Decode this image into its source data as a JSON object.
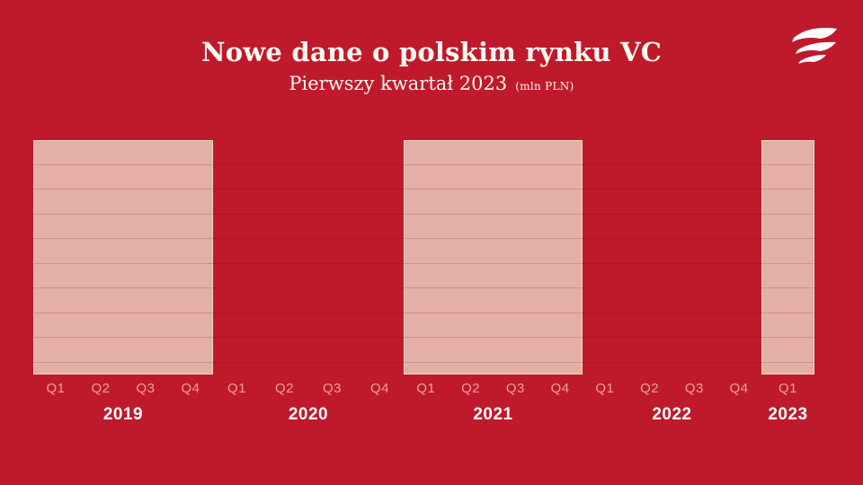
{
  "header": {
    "title": "Nowe dane o polskim rynku VC",
    "subtitle": "Pierwszy kwartał 2023",
    "unit_note": "(mln PLN)"
  },
  "logo": {
    "icon": "flag-stripes-logo"
  },
  "chart_data": {
    "type": "bar",
    "title": "Nowe dane o polskim rynku VC",
    "subtitle": "Pierwszy kwartał 2023",
    "unit": "mln PLN",
    "x_groups": [
      {
        "year": "2019",
        "quarters": [
          "Q1",
          "Q2",
          "Q3",
          "Q4"
        ],
        "band_highlighted": true
      },
      {
        "year": "2020",
        "quarters": [
          "Q1",
          "Q2",
          "Q3",
          "Q4"
        ],
        "band_highlighted": false
      },
      {
        "year": "2021",
        "quarters": [
          "Q1",
          "Q2",
          "Q3",
          "Q4"
        ],
        "band_highlighted": true
      },
      {
        "year": "2022",
        "quarters": [
          "Q1",
          "Q2",
          "Q3",
          "Q4"
        ],
        "band_highlighted": false
      },
      {
        "year": "2023",
        "quarters": [
          "Q1"
        ],
        "band_highlighted": true
      }
    ],
    "values": [],
    "note": "No bar values are rendered in this frame: the plot shows only alternating highlighted year bands over horizontal gridlines.",
    "gridlines": {
      "horizontal_count": 9
    },
    "legend": "none",
    "colors": {
      "background": "#BE1A2B",
      "band_fill": "#E4AFA5",
      "band_border": "rgba(255,255,255,0.45)",
      "gridline": "rgba(70,5,15,0.16)",
      "quarter_label": "rgba(255,226,220,0.66)",
      "year_label": "#FFFFFF",
      "title": "#FBF7F1"
    }
  }
}
